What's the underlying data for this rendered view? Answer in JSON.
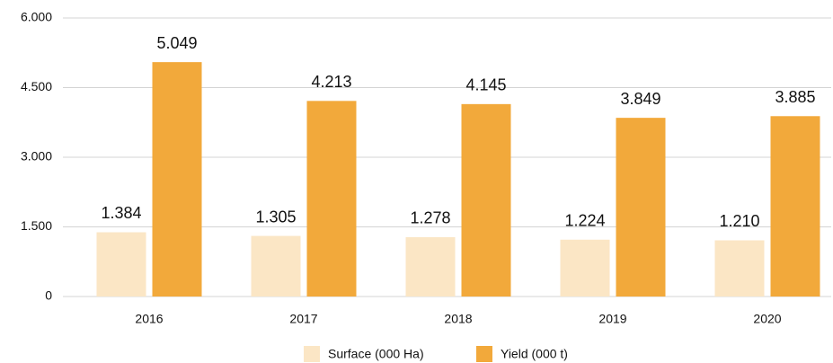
{
  "chart_data": {
    "type": "bar",
    "categories": [
      "2016",
      "2017",
      "2018",
      "2019",
      "2020"
    ],
    "series": [
      {
        "name": "Surface (000 Ha)",
        "color": "#fbe6c5",
        "values": [
          1384,
          1305,
          1278,
          1224,
          1210
        ],
        "value_labels": [
          "1.384",
          "1.305",
          "1.278",
          "1.224",
          "1.210"
        ]
      },
      {
        "name": "Yield (000 t)",
        "color": "#f2a93b",
        "values": [
          5049,
          4213,
          4145,
          3849,
          3885
        ],
        "value_labels": [
          "5.049",
          "4.213",
          "4.145",
          "3.849",
          "3.885"
        ]
      }
    ],
    "ylim": [
      0,
      6000
    ],
    "yticks": [
      0,
      {
        "value": 1500,
        "label": "1.500"
      },
      {
        "value": 3000,
        "label": "3.000"
      },
      {
        "value": 4500,
        "label": "4.500"
      },
      {
        "value": 6000,
        "label": "6.000"
      }
    ],
    "grid": true,
    "legend": "bottom"
  }
}
